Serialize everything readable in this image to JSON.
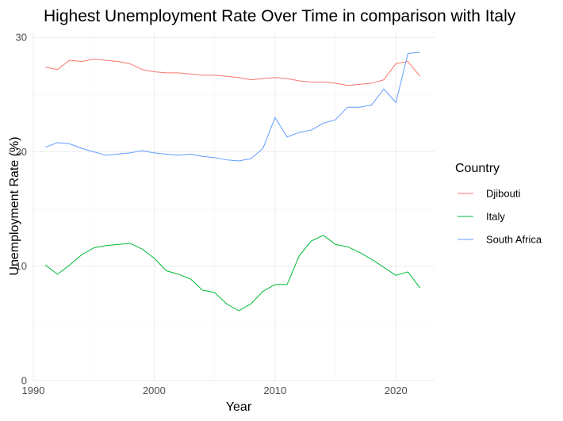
{
  "chart_data": {
    "type": "line",
    "title": "Highest Unemployment Rate Over Time in comparison with Italy",
    "xlabel": "Year",
    "ylabel": "Unemployment Rate (%)",
    "xlim": [
      1990,
      2023.2
    ],
    "ylim": [
      0,
      30.5
    ],
    "x_ticks": [
      1990,
      2000,
      2010,
      2020
    ],
    "y_ticks": [
      0,
      10,
      20,
      30
    ],
    "grid": true,
    "legend": {
      "title": "Country",
      "position": "right"
    },
    "x": [
      1991,
      1992,
      1993,
      1994,
      1995,
      1996,
      1997,
      1998,
      1999,
      2000,
      2001,
      2002,
      2003,
      2004,
      2005,
      2006,
      2007,
      2008,
      2009,
      2010,
      2011,
      2012,
      2013,
      2014,
      2015,
      2016,
      2017,
      2018,
      2019,
      2020,
      2021,
      2022
    ],
    "series": [
      {
        "name": "Djibouti",
        "color": "#F8766D",
        "values": [
          27.4,
          27.2,
          28.0,
          27.9,
          28.1,
          28.0,
          27.9,
          27.7,
          27.2,
          27.0,
          26.9,
          26.9,
          26.8,
          26.7,
          26.7,
          26.6,
          26.5,
          26.3,
          26.4,
          26.5,
          26.4,
          26.2,
          26.1,
          26.1,
          26.0,
          25.8,
          25.9,
          26.0,
          26.3,
          27.7,
          27.9,
          26.6
        ]
      },
      {
        "name": "Italy",
        "color": "#00BA38",
        "values": [
          10.1,
          9.3,
          10.1,
          11.0,
          11.6,
          11.8,
          11.9,
          12.0,
          11.5,
          10.7,
          9.6,
          9.3,
          8.9,
          7.9,
          7.7,
          6.7,
          6.1,
          6.7,
          7.8,
          8.4,
          8.4,
          10.9,
          12.2,
          12.7,
          11.9,
          11.7,
          11.2,
          10.6,
          9.9,
          9.2,
          9.5,
          8.1
        ]
      },
      {
        "name": "South Africa",
        "color": "#619CFF",
        "values": [
          20.4,
          20.8,
          20.7,
          20.3,
          20.0,
          19.7,
          19.8,
          19.9,
          20.1,
          19.9,
          19.8,
          19.7,
          19.8,
          19.6,
          19.5,
          19.3,
          19.2,
          19.4,
          20.3,
          23.0,
          21.3,
          21.7,
          21.9,
          22.5,
          22.8,
          23.9,
          23.9,
          24.1,
          25.5,
          24.3,
          28.6,
          28.7
        ]
      }
    ]
  }
}
